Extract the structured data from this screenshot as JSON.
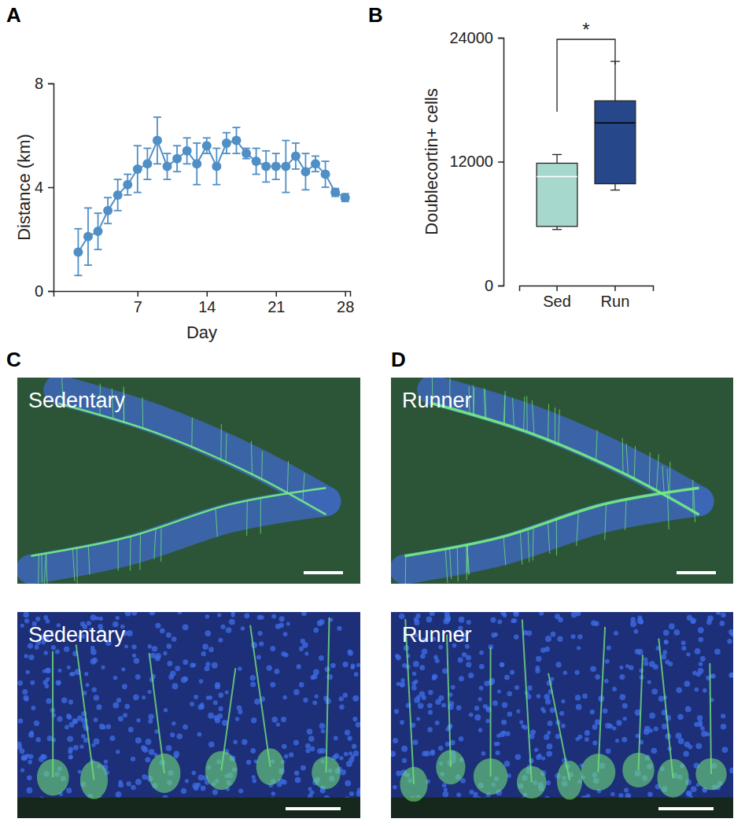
{
  "chart_data": [
    {
      "type": "line",
      "x": [
        1,
        2,
        3,
        4,
        5,
        6,
        7,
        8,
        9,
        10,
        11,
        12,
        13,
        14,
        15,
        16,
        17,
        18,
        19,
        20,
        21,
        22,
        23,
        24,
        25,
        26,
        27,
        28
      ],
      "series": [
        {
          "color": "#4f8fc6",
          "marker": "circle",
          "values": [
            1.5,
            2.1,
            2.3,
            3.1,
            3.7,
            4.1,
            4.7,
            4.9,
            5.8,
            4.8,
            5.1,
            5.4,
            4.9,
            5.6,
            4.8,
            5.7,
            5.8,
            5.3,
            5.0,
            4.8,
            4.8,
            4.8,
            5.2,
            4.6,
            4.9,
            4.5,
            3.8,
            3.6
          ],
          "errors": [
            0.9,
            1.1,
            0.7,
            0.5,
            0.6,
            0.4,
            0.9,
            0.6,
            0.9,
            0.5,
            0.5,
            0.5,
            0.8,
            0.3,
            0.7,
            0.4,
            0.5,
            0.2,
            0.5,
            0.6,
            0.5,
            1.0,
            0.5,
            0.7,
            0.3,
            0.5,
            0.15,
            0.15
          ]
        }
      ],
      "xlabel": "Day",
      "ylabel": "Distance (km)",
      "xlim": [
        -1.5,
        28.5
      ],
      "xticks": [
        7,
        14,
        21,
        28
      ],
      "ylim": [
        0,
        8
      ],
      "yticks": [
        0,
        4,
        8
      ]
    },
    {
      "type": "box",
      "categories": [
        "Sed",
        "Run"
      ],
      "boxes": [
        {
          "min": 5430,
          "q1": 5730,
          "median": 10550,
          "q3": 11850,
          "max": 12690
        },
        {
          "min": 9250,
          "q1": 9860,
          "median": 15750,
          "q3": 17890,
          "max": 21710
        }
      ],
      "colors": [
        "#a6d8cd",
        "#26478a"
      ],
      "ylabel": "Doublecortin+ cells",
      "ylim": [
        0,
        24000
      ],
      "yticks": [
        0,
        12000,
        24000
      ],
      "annotations": [
        "*"
      ]
    }
  ],
  "panel_labels": [
    "A",
    "B",
    "C",
    "D"
  ],
  "images": [
    {
      "label": "Sedentary"
    },
    {
      "label": "Runner"
    },
    {
      "label": "Sedentary"
    },
    {
      "label": "Runner"
    }
  ]
}
